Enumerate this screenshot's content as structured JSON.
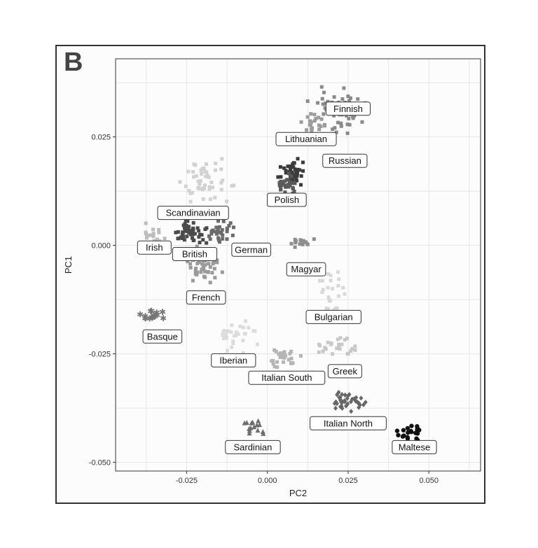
{
  "panel_letter": "B",
  "chart_data": {
    "type": "scatter",
    "xlabel": "PC2",
    "ylabel": "PC1",
    "xlim": [
      -0.047,
      0.066
    ],
    "ylim": [
      -0.052,
      0.043
    ],
    "xticks": [
      -0.025,
      0.0,
      0.025,
      0.05
    ],
    "xtick_labels": [
      "-0.025",
      "0.000",
      "0.025",
      "0.050"
    ],
    "yticks": [
      -0.05,
      -0.025,
      0.0,
      0.025
    ],
    "ytick_labels": [
      "-0.050",
      "-0.025",
      "0.000",
      "0.025"
    ],
    "grid": true,
    "legend": "none",
    "series": [
      {
        "name": "Finnish",
        "color": "#8a8a8a",
        "marker": "square",
        "cx": 0.022,
        "cy": 0.031,
        "sx": 0.006,
        "sy": 0.004,
        "n": 60
      },
      {
        "name": "Lithuanian",
        "color": "#9c9c9c",
        "marker": "square",
        "cx": 0.014,
        "cy": 0.028,
        "sx": 0.003,
        "sy": 0.002,
        "n": 20
      },
      {
        "name": "Russian",
        "color": "#3a3a3a",
        "marker": "square",
        "cx": 0.008,
        "cy": 0.017,
        "sx": 0.003,
        "sy": 0.002,
        "n": 40
      },
      {
        "name": "Polish",
        "color": "#5a5a5a",
        "marker": "square",
        "cx": 0.006,
        "cy": 0.014,
        "sx": 0.003,
        "sy": 0.002,
        "n": 30
      },
      {
        "name": "Scandinavian",
        "color": "#d2d2d2",
        "marker": "square",
        "cx": -0.018,
        "cy": 0.014,
        "sx": 0.006,
        "sy": 0.004,
        "n": 50
      },
      {
        "name": "Irish",
        "color": "#bdbdbd",
        "marker": "square",
        "cx": -0.035,
        "cy": 0.002,
        "sx": 0.003,
        "sy": 0.002,
        "n": 20
      },
      {
        "name": "British",
        "color": "#4a4a4a",
        "marker": "square",
        "cx": -0.024,
        "cy": 0.003,
        "sx": 0.004,
        "sy": 0.002,
        "n": 50
      },
      {
        "name": "German",
        "color": "#6b6b6b",
        "marker": "square",
        "cx": -0.015,
        "cy": 0.003,
        "sx": 0.004,
        "sy": 0.002,
        "n": 30
      },
      {
        "name": "Magyar",
        "color": "#8e8e8e",
        "marker": "square",
        "cx": 0.01,
        "cy": 0.0005,
        "sx": 0.003,
        "sy": 0.001,
        "n": 15
      },
      {
        "name": "French",
        "color": "#9a9a9a",
        "marker": "square",
        "cx": -0.02,
        "cy": -0.005,
        "sx": 0.004,
        "sy": 0.004,
        "n": 50
      },
      {
        "name": "Bulgarian",
        "color": "#d8d8d8",
        "marker": "square",
        "cx": 0.02,
        "cy": -0.012,
        "sx": 0.004,
        "sy": 0.005,
        "n": 30
      },
      {
        "name": "Basque",
        "color": "#777777",
        "marker": "star",
        "cx": -0.036,
        "cy": -0.016,
        "sx": 0.004,
        "sy": 0.001,
        "n": 15
      },
      {
        "name": "Iberian",
        "color": "#dcdcdc",
        "marker": "square",
        "cx": -0.01,
        "cy": -0.021,
        "sx": 0.005,
        "sy": 0.003,
        "n": 30
      },
      {
        "name": "Italian South",
        "color": "#b5b5b5",
        "marker": "square",
        "cx": 0.005,
        "cy": -0.026,
        "sx": 0.004,
        "sy": 0.002,
        "n": 30
      },
      {
        "name": "Greek",
        "color": "#c8c8c8",
        "marker": "square",
        "cx": 0.022,
        "cy": -0.023,
        "sx": 0.004,
        "sy": 0.002,
        "n": 25
      },
      {
        "name": "Italian North",
        "color": "#666666",
        "marker": "diamond",
        "cx": 0.025,
        "cy": -0.036,
        "sx": 0.004,
        "sy": 0.002,
        "n": 40
      },
      {
        "name": "Maltese",
        "color": "#111111",
        "marker": "circle",
        "cx": 0.045,
        "cy": -0.043,
        "sx": 0.004,
        "sy": 0.002,
        "n": 20
      },
      {
        "name": "Sardinian",
        "color": "#6e6e6e",
        "marker": "triangle",
        "cx": -0.004,
        "cy": -0.042,
        "sx": 0.003,
        "sy": 0.002,
        "n": 15
      }
    ],
    "labels": [
      {
        "text": "Finnish",
        "x": 0.025,
        "y": 0.0315
      },
      {
        "text": "Lithuanian",
        "x": 0.012,
        "y": 0.0245
      },
      {
        "text": "Russian",
        "x": 0.024,
        "y": 0.0195
      },
      {
        "text": "Polish",
        "x": 0.006,
        "y": 0.0105
      },
      {
        "text": "Scandinavian",
        "x": -0.023,
        "y": 0.0075
      },
      {
        "text": "Irish",
        "x": -0.035,
        "y": -0.0005
      },
      {
        "text": "British",
        "x": -0.0225,
        "y": -0.002
      },
      {
        "text": "German",
        "x": -0.005,
        "y": -0.001
      },
      {
        "text": "Magyar",
        "x": 0.012,
        "y": -0.0055
      },
      {
        "text": "French",
        "x": -0.019,
        "y": -0.012
      },
      {
        "text": "Bulgarian",
        "x": 0.0205,
        "y": -0.0165
      },
      {
        "text": "Basque",
        "x": -0.0325,
        "y": -0.021
      },
      {
        "text": "Iberian",
        "x": -0.0105,
        "y": -0.0265
      },
      {
        "text": "Italian South",
        "x": 0.006,
        "y": -0.0305
      },
      {
        "text": "Greek",
        "x": 0.024,
        "y": -0.029
      },
      {
        "text": "Italian North",
        "x": 0.025,
        "y": -0.041
      },
      {
        "text": "Maltese",
        "x": 0.0455,
        "y": -0.0465
      },
      {
        "text": "Sardinian",
        "x": -0.0045,
        "y": -0.0465
      }
    ]
  }
}
